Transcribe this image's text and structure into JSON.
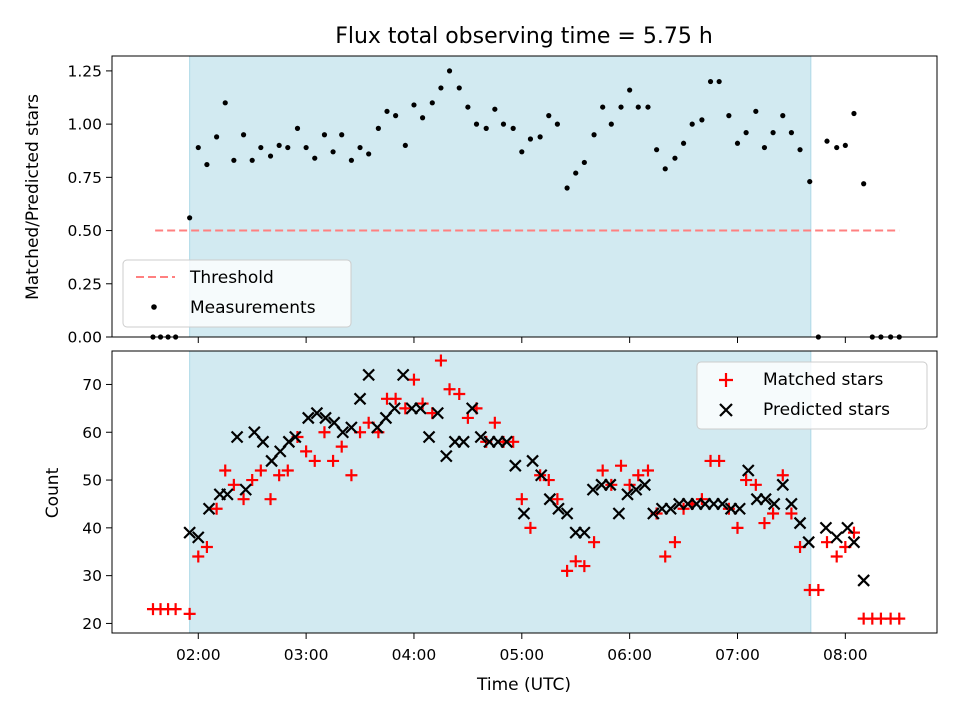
{
  "title": "Flux total observing time = 5.75 h",
  "colors": {
    "shade": "#add8e6",
    "threshold": "#ff8080",
    "measurement": "#000000",
    "matched": "#ff0000",
    "predicted": "#000000"
  },
  "chart_data": [
    {
      "type": "scatter",
      "ylabel": "Matched/Predicted stars",
      "xlim_hours": [
        1.2,
        8.85
      ],
      "ylim": [
        0,
        1.32
      ],
      "yticks": [
        0.0,
        0.25,
        0.5,
        0.75,
        1.0,
        1.25
      ],
      "ytick_labels": [
        "0.00",
        "0.25",
        "0.50",
        "0.75",
        "1.00",
        "1.25"
      ],
      "shaded_span_hours": [
        1.92,
        7.68
      ],
      "threshold": {
        "name": "Threshold",
        "y": 0.5,
        "x_hours": [
          1.6,
          8.5
        ]
      },
      "legend": {
        "location": "lower left",
        "entries": [
          "Threshold",
          "Measurements"
        ]
      },
      "series": [
        {
          "name": "Measurements",
          "marker": "dot",
          "x_hours": [
            1.58,
            1.65,
            1.72,
            1.79,
            1.92,
            2.0,
            2.08,
            2.17,
            2.25,
            2.33,
            2.42,
            2.5,
            2.58,
            2.67,
            2.75,
            2.83,
            2.92,
            3.0,
            3.08,
            3.17,
            3.25,
            3.33,
            3.42,
            3.5,
            3.58,
            3.67,
            3.75,
            3.83,
            3.92,
            4.0,
            4.08,
            4.17,
            4.25,
            4.33,
            4.42,
            4.5,
            4.58,
            4.67,
            4.75,
            4.83,
            4.92,
            5.0,
            5.08,
            5.17,
            5.25,
            5.33,
            5.42,
            5.5,
            5.58,
            5.67,
            5.75,
            5.83,
            5.92,
            6.0,
            6.08,
            6.17,
            6.25,
            6.33,
            6.42,
            6.5,
            6.58,
            6.67,
            6.75,
            6.83,
            6.92,
            7.0,
            7.08,
            7.17,
            7.25,
            7.33,
            7.42,
            7.5,
            7.58,
            7.67,
            7.75,
            7.83,
            7.92,
            8.0,
            8.08,
            8.17,
            8.25,
            8.33,
            8.42,
            8.5
          ],
          "y": [
            0.0,
            0.0,
            0.0,
            0.0,
            0.56,
            0.89,
            0.81,
            0.94,
            1.1,
            0.83,
            0.95,
            0.83,
            0.89,
            0.85,
            0.9,
            0.89,
            0.98,
            0.89,
            0.84,
            0.95,
            0.87,
            0.95,
            0.83,
            0.89,
            0.86,
            0.98,
            1.06,
            1.04,
            0.9,
            1.09,
            1.03,
            1.1,
            1.17,
            1.25,
            1.17,
            1.08,
            1.0,
            0.98,
            1.07,
            1.0,
            0.98,
            0.87,
            0.93,
            0.94,
            1.04,
            1.0,
            0.7,
            0.77,
            0.82,
            0.95,
            1.08,
            1.0,
            1.08,
            1.16,
            1.08,
            1.08,
            0.88,
            0.79,
            0.84,
            0.91,
            1.0,
            1.02,
            1.2,
            1.2,
            1.04,
            0.91,
            0.96,
            1.06,
            0.89,
            0.96,
            1.04,
            0.96,
            0.88,
            0.73,
            0.0,
            0.92,
            0.89,
            0.9,
            1.05,
            0.72,
            0.0,
            0.0,
            0.0,
            0.0
          ]
        }
      ]
    },
    {
      "type": "scatter",
      "xlabel": "Time (UTC)",
      "ylabel": "Count",
      "xlim_hours": [
        1.2,
        8.85
      ],
      "xticks_hours": [
        2,
        3,
        4,
        5,
        6,
        7,
        8
      ],
      "xtick_labels": [
        "02:00",
        "03:00",
        "04:00",
        "05:00",
        "06:00",
        "07:00",
        "08:00"
      ],
      "ylim": [
        18,
        77
      ],
      "yticks": [
        20,
        30,
        40,
        50,
        60,
        70
      ],
      "ytick_labels": [
        "20",
        "30",
        "40",
        "50",
        "60",
        "70"
      ],
      "shaded_span_hours": [
        1.92,
        7.68
      ],
      "legend": {
        "location": "upper right",
        "entries": [
          "Matched stars",
          "Predicted stars"
        ]
      },
      "series": [
        {
          "name": "Matched stars",
          "marker": "plus",
          "x_hours": [
            1.58,
            1.65,
            1.72,
            1.79,
            1.92,
            2.0,
            2.08,
            2.17,
            2.25,
            2.33,
            2.42,
            2.5,
            2.58,
            2.67,
            2.75,
            2.83,
            2.92,
            3.0,
            3.08,
            3.17,
            3.25,
            3.33,
            3.42,
            3.5,
            3.58,
            3.67,
            3.75,
            3.83,
            3.92,
            4.0,
            4.08,
            4.17,
            4.25,
            4.33,
            4.42,
            4.5,
            4.58,
            4.67,
            4.75,
            4.83,
            4.92,
            5.0,
            5.08,
            5.17,
            5.25,
            5.33,
            5.42,
            5.5,
            5.58,
            5.67,
            5.75,
            5.83,
            5.92,
            6.0,
            6.08,
            6.17,
            6.25,
            6.33,
            6.42,
            6.5,
            6.58,
            6.67,
            6.75,
            6.83,
            6.92,
            7.0,
            7.08,
            7.17,
            7.25,
            7.33,
            7.42,
            7.5,
            7.58,
            7.67,
            7.75,
            7.83,
            7.92,
            8.0,
            8.08,
            8.17,
            8.25,
            8.33,
            8.42,
            8.5
          ],
          "y": [
            23,
            23,
            23,
            23,
            22,
            34,
            36,
            44,
            52,
            49,
            46,
            50,
            52,
            46,
            51,
            52,
            59,
            56,
            54,
            60,
            54,
            57,
            51,
            60,
            62,
            60,
            67,
            67,
            65,
            71,
            66,
            64,
            75,
            69,
            68,
            63,
            65,
            58,
            62,
            58,
            58,
            46,
            40,
            51,
            50,
            46,
            31,
            33,
            32,
            37,
            52,
            49,
            53,
            49,
            51,
            52,
            43,
            34,
            37,
            44,
            45,
            46,
            54,
            54,
            44,
            40,
            50,
            49,
            41,
            43,
            51,
            43,
            36,
            27,
            27,
            37,
            34,
            36,
            39,
            21,
            21,
            21,
            21,
            21
          ]
        },
        {
          "name": "Predicted stars",
          "marker": "x",
          "x_hours": [
            1.92,
            2.0,
            2.1,
            2.2,
            2.27,
            2.36,
            2.44,
            2.52,
            2.6,
            2.68,
            2.76,
            2.84,
            2.9,
            3.02,
            3.1,
            3.18,
            3.26,
            3.34,
            3.42,
            3.5,
            3.58,
            3.66,
            3.74,
            3.82,
            3.9,
            3.98,
            4.06,
            4.14,
            4.22,
            4.3,
            4.38,
            4.46,
            4.54,
            4.62,
            4.7,
            4.78,
            4.86,
            4.94,
            5.02,
            5.1,
            5.18,
            5.26,
            5.34,
            5.42,
            5.5,
            5.58,
            5.66,
            5.74,
            5.82,
            5.9,
            5.98,
            6.06,
            6.14,
            6.22,
            6.3,
            6.38,
            6.46,
            6.54,
            6.62,
            6.7,
            6.78,
            6.86,
            6.94,
            7.02,
            7.1,
            7.18,
            7.26,
            7.34,
            7.42,
            7.5,
            7.58,
            7.66,
            7.82,
            7.92,
            8.02,
            8.08,
            8.17
          ],
          "y": [
            39,
            38,
            44,
            47,
            47,
            59,
            48,
            60,
            58,
            54,
            56,
            58,
            59,
            63,
            64,
            63,
            62,
            60,
            61,
            67,
            72,
            61,
            63,
            65,
            72,
            65,
            65,
            59,
            64,
            55,
            58,
            58,
            65,
            59,
            58,
            58,
            58,
            53,
            43,
            54,
            51,
            46,
            44,
            43,
            39,
            39,
            48,
            49,
            49,
            43,
            47,
            48,
            49,
            43,
            44,
            44,
            45,
            45,
            45,
            45,
            45,
            45,
            44,
            44,
            52,
            46,
            46,
            45,
            49,
            45,
            41,
            37,
            40,
            38,
            40,
            37,
            29
          ]
        }
      ]
    }
  ]
}
